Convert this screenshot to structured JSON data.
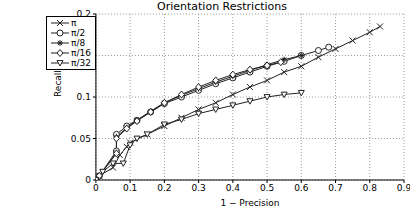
{
  "chart_data": {
    "type": "line",
    "title": "Orientation Restrictions",
    "x_label": "1 − Precision",
    "y_label": "Recall",
    "xlim": [
      0,
      0.9
    ],
    "ylim": [
      0,
      0.2
    ],
    "xticks": [
      0,
      0.1,
      0.2,
      0.3,
      0.4,
      0.5,
      0.6,
      0.7,
      0.8,
      0.9
    ],
    "yticks": [
      0,
      0.05,
      0.1,
      0.15,
      0.2
    ],
    "grid": true,
    "legend": "upper left",
    "series": [
      {
        "name": "π",
        "color": "#222222",
        "marker": "x",
        "x": [
          0,
          0.01,
          0.05,
          0.07,
          0.09,
          0.1,
          0.15,
          0.2,
          0.25,
          0.3,
          0.35,
          0.4,
          0.45,
          0.5,
          0.55,
          0.6,
          0.65,
          0.7,
          0.75,
          0.8,
          0.83
        ],
        "values": [
          0,
          0.005,
          0.015,
          0.03,
          0.04,
          0.045,
          0.055,
          0.065,
          0.075,
          0.085,
          0.093,
          0.103,
          0.112,
          0.12,
          0.13,
          0.137,
          0.148,
          0.158,
          0.168,
          0.178,
          0.185
        ]
      },
      {
        "name": "π/2",
        "color": "#222222",
        "marker": "circle",
        "x": [
          0,
          0.01,
          0.06,
          0.06,
          0.09,
          0.12,
          0.16,
          0.2,
          0.25,
          0.3,
          0.35,
          0.4,
          0.45,
          0.5,
          0.55,
          0.6,
          0.65,
          0.68
        ],
        "values": [
          0,
          0.005,
          0.035,
          0.055,
          0.065,
          0.072,
          0.082,
          0.092,
          0.1,
          0.108,
          0.116,
          0.123,
          0.13,
          0.137,
          0.143,
          0.15,
          0.156,
          0.16
        ]
      },
      {
        "name": "π/8",
        "color": "#222222",
        "marker": "star",
        "x": [
          0,
          0.01,
          0.06,
          0.06,
          0.09,
          0.12,
          0.16,
          0.2,
          0.25,
          0.3,
          0.35,
          0.4,
          0.45,
          0.5,
          0.55,
          0.6
        ],
        "values": [
          0,
          0.005,
          0.033,
          0.052,
          0.063,
          0.072,
          0.083,
          0.093,
          0.102,
          0.11,
          0.118,
          0.125,
          0.132,
          0.139,
          0.145,
          0.15
        ]
      },
      {
        "name": "π/16",
        "color": "#222222",
        "marker": "diamond",
        "x": [
          0,
          0.01,
          0.06,
          0.06,
          0.09,
          0.12,
          0.16,
          0.2,
          0.25,
          0.3,
          0.35,
          0.4,
          0.45,
          0.5,
          0.54
        ],
        "values": [
          0,
          0.005,
          0.032,
          0.05,
          0.062,
          0.071,
          0.082,
          0.093,
          0.103,
          0.112,
          0.12,
          0.127,
          0.133,
          0.138,
          0.142
        ]
      },
      {
        "name": "π/32",
        "color": "#222222",
        "marker": "triangle_down",
        "x": [
          0,
          0.02,
          0.05,
          0.08,
          0.1,
          0.12,
          0.15,
          0.2,
          0.25,
          0.3,
          0.35,
          0.4,
          0.45,
          0.5,
          0.55,
          0.6
        ],
        "values": [
          0,
          0.01,
          0.02,
          0.02,
          0.042,
          0.05,
          0.055,
          0.067,
          0.073,
          0.08,
          0.085,
          0.09,
          0.095,
          0.1,
          0.103,
          0.105
        ]
      }
    ]
  }
}
